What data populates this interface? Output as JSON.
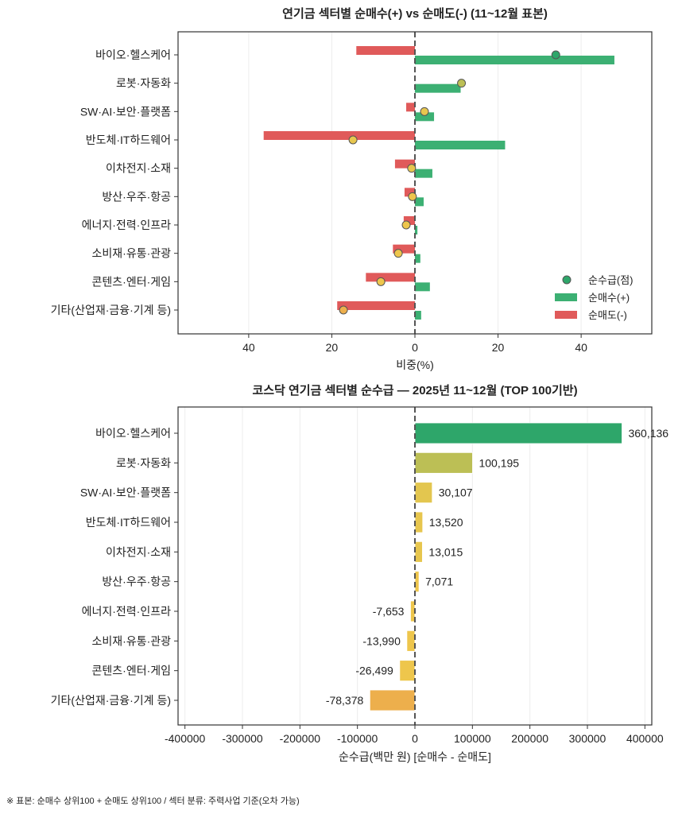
{
  "chart_data": [
    {
      "type": "bar",
      "title": "연기금 섹터별 순매수(+) vs 순매도(-) (11~12월 표본)",
      "xlabel": "비중(%)",
      "xlim": [
        -57,
        57
      ],
      "xticks": [
        -40,
        -20,
        0,
        20,
        40
      ],
      "xtick_labels": [
        "40",
        "20",
        "0",
        "20",
        "40"
      ],
      "grid": "vertical",
      "legend_position": "lower-right",
      "categories": [
        "바이오·헬스케어",
        "로봇·자동화",
        "SW·AI·보안·플랫폼",
        "반도체·IT하드웨어",
        "이차전지·소재",
        "방산·우주·항공",
        "에너지·전력·인프라",
        "소비재·유통·관광",
        "콘텐츠·엔터·게임",
        "기타(산업재·금융·기계 등)"
      ],
      "series": [
        {
          "name": "순수급(점)",
          "kind": "scatter",
          "values": [
            33.9,
            11.2,
            2.3,
            -14.9,
            -0.8,
            -0.6,
            -2.1,
            -4.0,
            -8.2,
            -17.2
          ]
        },
        {
          "name": "순매수(+)",
          "kind": "bar",
          "color": "#3cb073",
          "values": [
            48.0,
            11.0,
            4.6,
            21.7,
            4.2,
            2.1,
            0.6,
            1.3,
            3.6,
            1.5
          ]
        },
        {
          "name": "순매도(-)",
          "kind": "bar",
          "color": "#e05a5a",
          "values": [
            -14.1,
            0,
            -2.1,
            -36.4,
            -4.8,
            -2.5,
            -2.7,
            -5.3,
            -11.8,
            -18.7
          ]
        }
      ],
      "point_colors": [
        "#2ea66a",
        "#bcbf55",
        "#e7c64e",
        "#e7c64e",
        "#e7c64e",
        "#eec64c",
        "#eec64c",
        "#eec64c",
        "#eec64c",
        "#edaf4c"
      ]
    },
    {
      "type": "bar",
      "orientation": "horizontal",
      "title": "코스닥 연기금 섹터별 순수급 — 2025년 11~12월 (TOP 100기반)",
      "xlabel": "순수급(백만 원) [순매수 - 순매도]",
      "xlim": [
        -412000,
        412000
      ],
      "xticks": [
        -400000,
        -300000,
        -200000,
        -100000,
        0,
        100000,
        200000,
        300000,
        400000
      ],
      "xtick_labels": [
        "-400000",
        "-300000",
        "-200000",
        "-100000",
        "0",
        "100000",
        "200000",
        "300000",
        "400000"
      ],
      "grid": "vertical",
      "categories": [
        "바이오·헬스케어",
        "로봇·자동화",
        "SW·AI·보안·플랫폼",
        "반도체·IT하드웨어",
        "이차전지·소재",
        "방산·우주·항공",
        "에너지·전력·인프라",
        "소비재·유통·관광",
        "콘텐츠·엔터·게임",
        "기타(산업재·금융·기계 등)"
      ],
      "values": [
        360136,
        100195,
        30107,
        13520,
        13015,
        7071,
        -7653,
        -13990,
        -26499,
        -78378
      ],
      "data_labels": [
        "360,136",
        "100,195",
        "30,107",
        "13,520",
        "13,015",
        "7,071",
        "-7,653",
        "-13,990",
        "-26,499",
        "-78,378"
      ],
      "colors": [
        "#2ea66a",
        "#bcbf55",
        "#e3c64f",
        "#e7c64e",
        "#e7c64e",
        "#eec64c",
        "#eec64c",
        "#eec64c",
        "#eec64c",
        "#edaf4c"
      ]
    }
  ],
  "footnote": "※ 표본: 순매수 상위100 + 순매도 상위100 / 섹터 분류: 주력사업 기준(오차 가능)"
}
